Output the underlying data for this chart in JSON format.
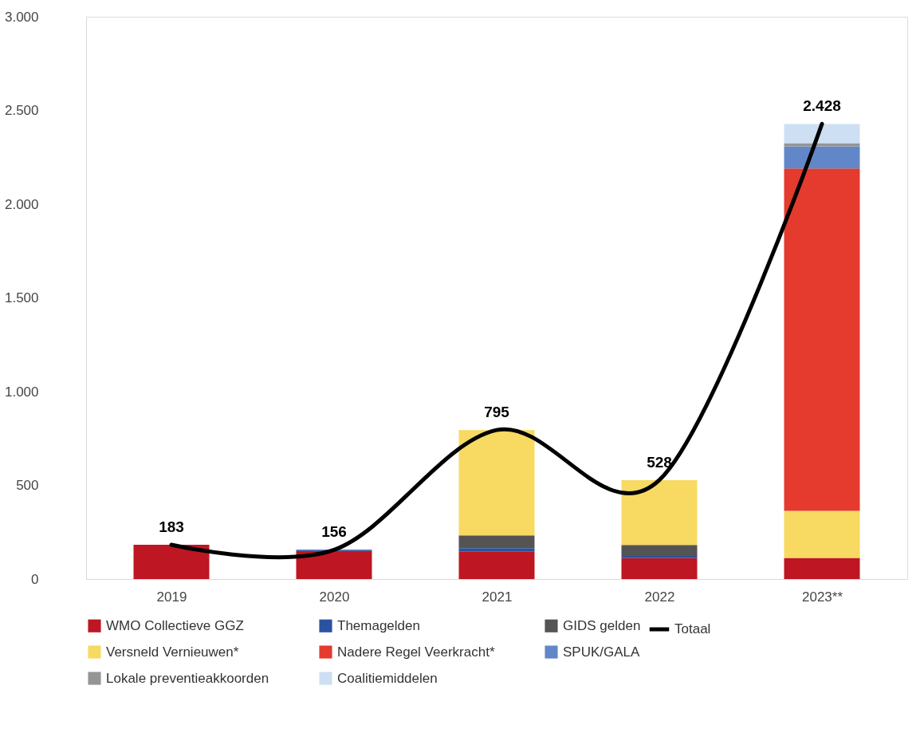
{
  "chart_data": {
    "type": "bar",
    "stacked": true,
    "categories": [
      "2019",
      "2020",
      "2021",
      "2022",
      "2023**"
    ],
    "series": [
      {
        "name": "WMO Collectieve GGZ",
        "color": "#be1622",
        "values": [
          183,
          150,
          148,
          112,
          113
        ]
      },
      {
        "name": "Themagelden",
        "color": "#2a52a0",
        "values": [
          null,
          6,
          17,
          11,
          null
        ]
      },
      {
        "name": "GIDS gelden",
        "color": "#545454",
        "values": [
          null,
          null,
          68,
          59,
          null
        ]
      },
      {
        "name": "Versneld Vernieuwen*",
        "color": "#f8d961",
        "values": [
          null,
          null,
          562,
          346,
          251
        ]
      },
      {
        "name": "Nadere Regel Veerkracht*",
        "color": "#e53a2e",
        "values": [
          null,
          null,
          null,
          null,
          1826
        ]
      },
      {
        "name": "SPUK/GALA",
        "color": "#6287c8",
        "values": [
          null,
          null,
          null,
          null,
          119
        ]
      },
      {
        "name": "Lokale preventieakkoorden",
        "color": "#959595",
        "values": [
          null,
          null,
          null,
          null,
          17
        ]
      },
      {
        "name": "Coalitiemiddelen",
        "color": "#cddff2",
        "values": [
          null,
          null,
          null,
          null,
          102
        ]
      },
      {
        "name": "Totaal",
        "type": "line",
        "color": "#000000",
        "values": [
          183,
          156,
          795,
          528,
          2428
        ]
      }
    ],
    "totals": [
      "183",
      "156",
      "795",
      "528",
      "2.428"
    ],
    "ylim": [
      0,
      3000
    ],
    "yticks": [
      0,
      {
        "value": 500,
        "label": "500"
      },
      {
        "value": 1000,
        "label": "1.000"
      },
      {
        "value": 1500,
        "label": "1.500"
      },
      {
        "value": 2000,
        "label": "2.000"
      },
      {
        "value": 2500,
        "label": "2.500"
      },
      {
        "value": 3000,
        "label": "3.000"
      }
    ],
    "grid": false,
    "legend": "bottom"
  }
}
